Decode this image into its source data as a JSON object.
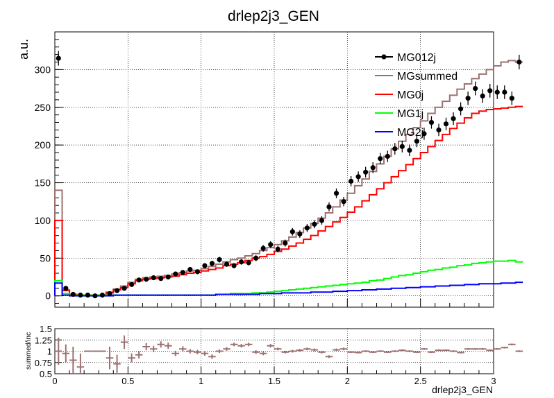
{
  "chart_data": [
    {
      "type": "line",
      "title": "drlep2j3_GEN",
      "ylabel": "a.u.",
      "xlabel": "",
      "xlim": [
        0,
        3
      ],
      "ylim": [
        -15,
        350
      ],
      "grid": true,
      "legend_position": "top-right",
      "yticks": [
        "0",
        "50",
        "100",
        "150",
        "200",
        "250",
        "300"
      ],
      "bin_width": 0.05,
      "x_start": 0,
      "series": [
        {
          "name": "MG012j",
          "style": "points",
          "color": "#000000",
          "values": [
            315,
            10,
            2,
            1,
            1,
            0,
            1,
            3,
            7,
            10,
            15,
            21,
            22,
            24,
            23,
            25,
            29,
            31,
            35,
            32,
            40,
            43,
            48,
            42,
            40,
            45,
            44,
            50,
            63,
            68,
            62,
            70,
            85,
            82,
            90,
            95,
            100,
            118,
            136,
            125,
            152,
            158,
            164,
            170,
            182,
            185,
            195,
            198,
            193,
            205,
            215,
            230,
            220,
            228,
            235,
            248,
            262,
            275,
            265,
            272,
            270,
            270,
            262,
            310
          ]
        },
        {
          "name": "MGsummed",
          "style": "step",
          "color": "#9c7070",
          "values": [
            140,
            8,
            2,
            1,
            1,
            1,
            1,
            5,
            9,
            13,
            18,
            22,
            24,
            25,
            26,
            27,
            29,
            31,
            33,
            34,
            36,
            39,
            42,
            45,
            48,
            50,
            53,
            56,
            60,
            64,
            68,
            73,
            78,
            84,
            90,
            96,
            103,
            110,
            118,
            127,
            136,
            146,
            155,
            165,
            175,
            185,
            195,
            205,
            214,
            223,
            232,
            242,
            250,
            258,
            266,
            274,
            281,
            288,
            294,
            300,
            305,
            310,
            312,
            310
          ]
        },
        {
          "name": "MG0j",
          "style": "step",
          "color": "#ff0000",
          "values": [
            100,
            7,
            2,
            1,
            1,
            1,
            1,
            4,
            8,
            11,
            16,
            20,
            22,
            23,
            24,
            25,
            26,
            28,
            30,
            31,
            33,
            35,
            37,
            40,
            42,
            44,
            47,
            50,
            52,
            55,
            59,
            62,
            66,
            70,
            75,
            80,
            86,
            92,
            98,
            104,
            111,
            118,
            126,
            134,
            142,
            150,
            158,
            166,
            174,
            182,
            190,
            198,
            206,
            214,
            222,
            229,
            236,
            242,
            245,
            247,
            248,
            249,
            250,
            251
          ]
        },
        {
          "name": "MG1j",
          "style": "step",
          "color": "#00ff00",
          "values": [
            20,
            3,
            1,
            1,
            1,
            1,
            1,
            1,
            1,
            1,
            1,
            1,
            1,
            1,
            1,
            1,
            1,
            1,
            1,
            1,
            1,
            1,
            2,
            2,
            3,
            3,
            3,
            4,
            4,
            5,
            6,
            7,
            8,
            9,
            10,
            11,
            12,
            13,
            14,
            15,
            16,
            17,
            18,
            20,
            21,
            23,
            25,
            27,
            28,
            30,
            32,
            34,
            35,
            37,
            38,
            40,
            41,
            43,
            44,
            45,
            46,
            46,
            47,
            45
          ]
        },
        {
          "name": "MG2j",
          "style": "step",
          "color": "#0000ff",
          "values": [
            17,
            1,
            0,
            0,
            0,
            0,
            0,
            0,
            1,
            1,
            1,
            1,
            1,
            1,
            1,
            1,
            1,
            1,
            1,
            1,
            1,
            1,
            2,
            2,
            2,
            2,
            2,
            2,
            3,
            3,
            3,
            4,
            4,
            4,
            4,
            5,
            5,
            5,
            6,
            6,
            7,
            7,
            8,
            8,
            9,
            9,
            10,
            10,
            11,
            11,
            12,
            12,
            13,
            13,
            14,
            14,
            15,
            15,
            16,
            16,
            16,
            17,
            17,
            18
          ]
        }
      ]
    },
    {
      "type": "scatter",
      "title": "",
      "ylabel": "summed/inc",
      "xlabel": "drlep2j3_GEN",
      "xlim": [
        0,
        3
      ],
      "ylim": [
        0.5,
        1.5
      ],
      "grid": true,
      "xticks": [
        "0",
        "0.5",
        "1",
        "1.5",
        "2",
        "2.5",
        "3"
      ],
      "yticks": [
        "0.5",
        "0.75",
        "1",
        "1.25",
        "1.5"
      ],
      "color": "#9c7070",
      "values": [
        1.0,
        0.95,
        0.8,
        0.65,
        1.0,
        1.0,
        1.0,
        0.85,
        0.72,
        1.2,
        0.85,
        0.92,
        1.1,
        1.05,
        1.15,
        1.12,
        0.95,
        1.05,
        1.0,
        0.98,
        0.95,
        0.88,
        1.0,
        1.05,
        1.15,
        1.12,
        1.15,
        0.98,
        0.95,
        1.12,
        1.05,
        0.98,
        1.0,
        1.02,
        1.05,
        1.03,
        0.98,
        0.88,
        1.03,
        1.05,
        0.98,
        0.97,
        1.0,
        0.98,
        1.0,
        0.98,
        1.0,
        1.02,
        1.0,
        0.98,
        1.05,
        0.98,
        1.02,
        1.02,
        1.0,
        0.97,
        1.05,
        1.05,
        1.05,
        1.02,
        1.05,
        1.08,
        1.15,
        1.0
      ],
      "errors": [
        0.3,
        0.2,
        0.3,
        0.3,
        0,
        0,
        0,
        0.25,
        0.2,
        0.15,
        0.1,
        0.08,
        0.08,
        0.07,
        0.07,
        0.07,
        0.06,
        0.06,
        0.05,
        0.05,
        0.05,
        0.05,
        0.04,
        0.04,
        0.04,
        0.04,
        0.04,
        0.04,
        0.04,
        0.04,
        0.03,
        0.03,
        0.03,
        0.03,
        0.03,
        0.03,
        0.03,
        0.03,
        0.03,
        0.03,
        0.02,
        0.02,
        0.02,
        0.02,
        0.02,
        0.02,
        0.02,
        0.02,
        0.02,
        0.02,
        0.02,
        0.02,
        0.02,
        0.02,
        0.02,
        0.02,
        0.02,
        0.02,
        0.02,
        0.02,
        0.02,
        0.02,
        0.02,
        0.02
      ]
    }
  ]
}
